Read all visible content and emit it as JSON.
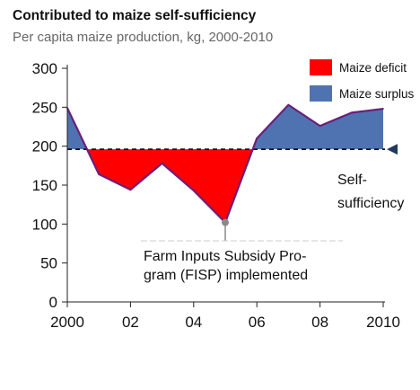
{
  "chart_data": {
    "type": "area",
    "title": "Contributed to maize self-sufficiency",
    "subtitle": "Per capita maize production, kg, 2000-2010",
    "xlabel": "",
    "ylabel": "",
    "xlim": [
      2000,
      2010
    ],
    "ylim": [
      0,
      300
    ],
    "grid": false,
    "x_ticks": [
      2000,
      2002,
      2004,
      2006,
      2008,
      2010
    ],
    "x_tick_labels": [
      "2000",
      "02",
      "04",
      "06",
      "08",
      "2010"
    ],
    "y_ticks": [
      0,
      50,
      100,
      150,
      200,
      250,
      300
    ],
    "y_tick_labels": [
      "0",
      "50",
      "100",
      "150",
      "200",
      "250",
      "300"
    ],
    "x": [
      2000,
      2001,
      2002,
      2003,
      2004,
      2005,
      2006,
      2007,
      2008,
      2009,
      2010
    ],
    "values": [
      249,
      164,
      144,
      178,
      143,
      102,
      210,
      253,
      226,
      243,
      248
    ],
    "self_sufficiency_level": 196,
    "series": [
      {
        "name": "Maize deficit",
        "color": "#ff0000"
      },
      {
        "name": "Maize surplus",
        "color": "#4e73b0"
      }
    ],
    "line_color": "#6b1f7c",
    "legend_position": "top-right",
    "annotations": [
      {
        "text_lines": [
          "Self-",
          "sufficiency"
        ],
        "near_y": 196
      },
      {
        "text_lines": [
          "Farm Inputs Subsidy Pro-",
          "gram (FISP) implemented"
        ],
        "x": 2005
      }
    ]
  }
}
